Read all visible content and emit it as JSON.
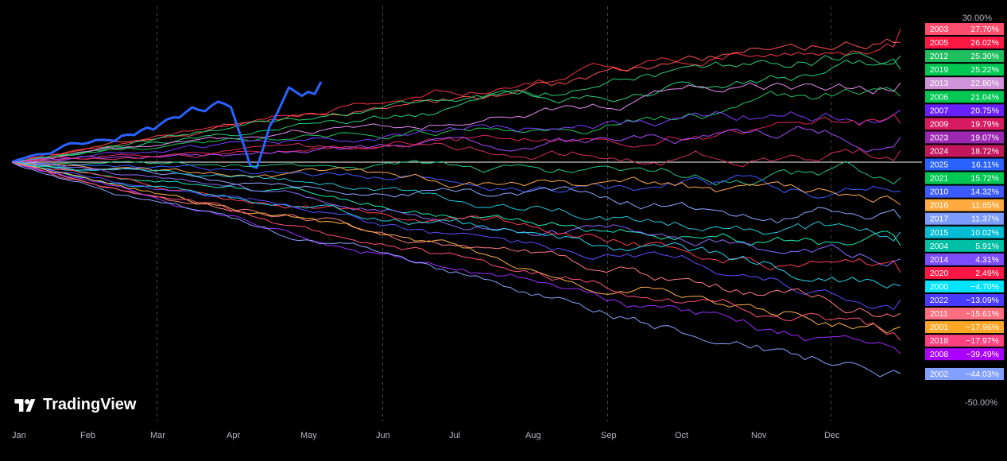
{
  "brand": {
    "name": "TradingView",
    "logo_icon": "tradingview-logo-icon"
  },
  "colors": {
    "background": "#000000",
    "zero_line": "#ffffff",
    "grid": "#444444",
    "axis_text": "#b2b5be",
    "current_year": "#2962ff"
  },
  "chart_data": {
    "type": "line",
    "x_labels": [
      "Jan",
      "Feb",
      "Mar",
      "Apr",
      "May",
      "Jun",
      "Jul",
      "Aug",
      "Sep",
      "Oct",
      "Nov",
      "Dec"
    ],
    "ylim": [
      -50,
      30
    ],
    "y_tick_labels": [
      "30.00%",
      "-50.00%"
    ],
    "grid": "vertical dashed at Mar, Jun, Sep, Dec",
    "legend_position": "right",
    "series": [
      {
        "name": "2003",
        "end_value": 27.7,
        "label": "27.70%",
        "color": "#f23645",
        "tag_color": "#ff4d6d"
      },
      {
        "name": "2005",
        "end_value": 26.02,
        "label": "26.02%",
        "color": "#ff5252",
        "tag_color": "#ff1744"
      },
      {
        "name": "2012",
        "end_value": 25.3,
        "label": "25.30%",
        "color": "#2ecc71",
        "tag_color": "#1fbf5f"
      },
      {
        "name": "2019",
        "end_value": 25.22,
        "label": "25.22%",
        "color": "#26d07c",
        "tag_color": "#00c853"
      },
      {
        "name": "2013",
        "end_value": 22.8,
        "label": "22.80%",
        "color": "#e88bf0",
        "tag_color": "#ce93d8"
      },
      {
        "name": "2006",
        "end_value": 21.04,
        "label": "21.04%",
        "color": "#22c55e",
        "tag_color": "#00c853"
      },
      {
        "name": "2007",
        "end_value": 20.75,
        "label": "20.75%",
        "color": "#7b3cff",
        "tag_color": "#6a1fff"
      },
      {
        "name": "2009",
        "end_value": 19.79,
        "label": "19.79%",
        "color": "#e0245e",
        "tag_color": "#d81b60"
      },
      {
        "name": "2023",
        "end_value": 19.07,
        "label": "19.07%",
        "color": "#a64dff",
        "tag_color": "#9c27b0"
      },
      {
        "name": "2024",
        "end_value": 18.72,
        "label": "18.72%",
        "color": "#d5305c",
        "tag_color": "#c2185b"
      },
      {
        "name": "2025",
        "end_value": 16.11,
        "label": "16.11%",
        "color": "#2962ff",
        "tag_color": "#2962ff"
      },
      {
        "name": "2021",
        "end_value": 15.72,
        "label": "15.72%",
        "color": "#26c281",
        "tag_color": "#00c853"
      },
      {
        "name": "2010",
        "end_value": 14.32,
        "label": "14.32%",
        "color": "#3d5afe",
        "tag_color": "#3d5afe"
      },
      {
        "name": "2016",
        "end_value": 11.65,
        "label": "11.65%",
        "color": "#ffa94d",
        "tag_color": "#ffab40"
      },
      {
        "name": "2017",
        "end_value": 11.37,
        "label": "11.37%",
        "color": "#8ea8ff",
        "tag_color": "#7c9cff"
      },
      {
        "name": "2015",
        "end_value": 10.02,
        "label": "10.02%",
        "color": "#26c6da",
        "tag_color": "#00bcd4"
      },
      {
        "name": "2004",
        "end_value": 5.91,
        "label": "5.91%",
        "color": "#1de9b6",
        "tag_color": "#00bfa5"
      },
      {
        "name": "2014",
        "end_value": 4.31,
        "label": "4.31%",
        "color": "#8c6cff",
        "tag_color": "#7c4dff"
      },
      {
        "name": "2020",
        "end_value": 2.49,
        "label": "2.49%",
        "color": "#ff3d57",
        "tag_color": "#ff1744"
      },
      {
        "name": "2000",
        "end_value": -4.7,
        "label": "−4.70%",
        "color": "#22d3ee",
        "tag_color": "#00e5ff"
      },
      {
        "name": "2022",
        "end_value": -13.09,
        "label": "−13.09%",
        "color": "#5b4dff",
        "tag_color": "#4a3aff"
      },
      {
        "name": "2011",
        "end_value": -15.61,
        "label": "−15.61%",
        "color": "#ff7a85",
        "tag_color": "#ff6e7f"
      },
      {
        "name": "2001",
        "end_value": -17.96,
        "label": "−17.96%",
        "color": "#ffb347",
        "tag_color": "#ffa726"
      },
      {
        "name": "2018",
        "end_value": -17.97,
        "label": "−17.97%",
        "color": "#ff4f7b",
        "tag_color": "#ff4081"
      },
      {
        "name": "2008",
        "end_value": -39.49,
        "label": "−39.49%",
        "color": "#9d2cff",
        "tag_color": "#aa00ff"
      },
      {
        "name": "2002",
        "end_value": -44.03,
        "label": "−44.03%",
        "color": "#8aa2ff",
        "tag_color": "#82a0ff"
      }
    ]
  }
}
